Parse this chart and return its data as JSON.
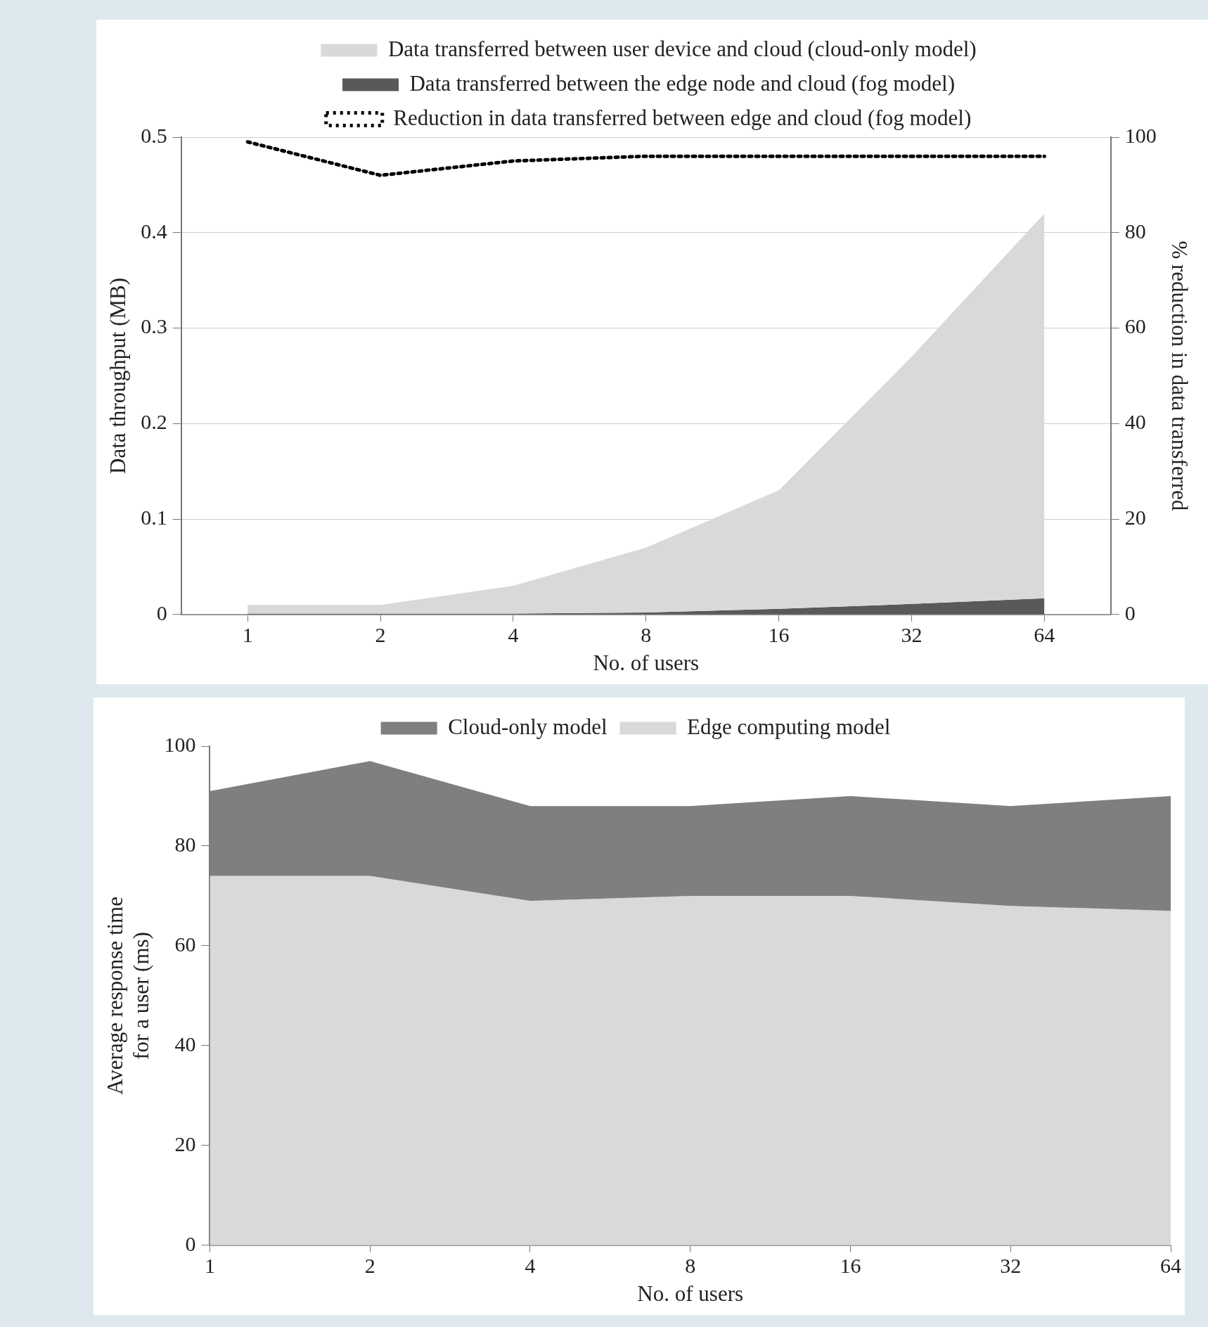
{
  "chart_data": [
    {
      "type": "area",
      "xlabel": "No. of users",
      "ylabel": "Data throughput (MB)",
      "y2label": "% reduction in data transferred",
      "categories": [
        "1",
        "2",
        "4",
        "8",
        "16",
        "32",
        "64"
      ],
      "series": [
        {
          "name": "Data transferred between user device and cloud (cloud-only model)",
          "type": "area",
          "color": "#d9d9d9",
          "values": [
            0.01,
            0.01,
            0.03,
            0.07,
            0.13,
            0.27,
            0.42
          ]
        },
        {
          "name": "Data transferred between the edge node and cloud (fog model)",
          "type": "area",
          "color": "#595959",
          "values": [
            0.001,
            0.001,
            0.001,
            0.002,
            0.006,
            0.011,
            0.017
          ]
        },
        {
          "name": "Reduction in data transferred between edge and cloud (fog model)",
          "type": "line",
          "axis": "y2",
          "line_style": "dotted",
          "color": "#000000",
          "values": [
            99,
            92,
            95,
            96,
            96,
            96,
            96
          ]
        }
      ],
      "ylim": [
        0,
        0.5
      ],
      "yticks": [
        0,
        0.1,
        0.2,
        0.3,
        0.4,
        0.5
      ],
      "y2lim": [
        0,
        100
      ],
      "y2ticks": [
        0,
        20,
        40,
        60,
        80,
        100
      ],
      "grid": "y",
      "legend": "top"
    },
    {
      "type": "area",
      "xlabel": "No. of users",
      "ylabel": "Average response time\nfor a user (ms)",
      "categories": [
        "1",
        "2",
        "4",
        "8",
        "16",
        "32",
        "64"
      ],
      "series": [
        {
          "name": "Cloud-only model",
          "color": "#7f7f7f",
          "values": [
            91,
            97,
            88,
            88,
            90,
            88,
            90
          ]
        },
        {
          "name": "Edge computing model",
          "color": "#d9d9d9",
          "values": [
            74,
            74,
            69,
            70,
            70,
            68,
            67
          ]
        }
      ],
      "ylim": [
        0,
        100
      ],
      "yticks": [
        0,
        20,
        40,
        60,
        80,
        100
      ],
      "legend": "top"
    }
  ]
}
